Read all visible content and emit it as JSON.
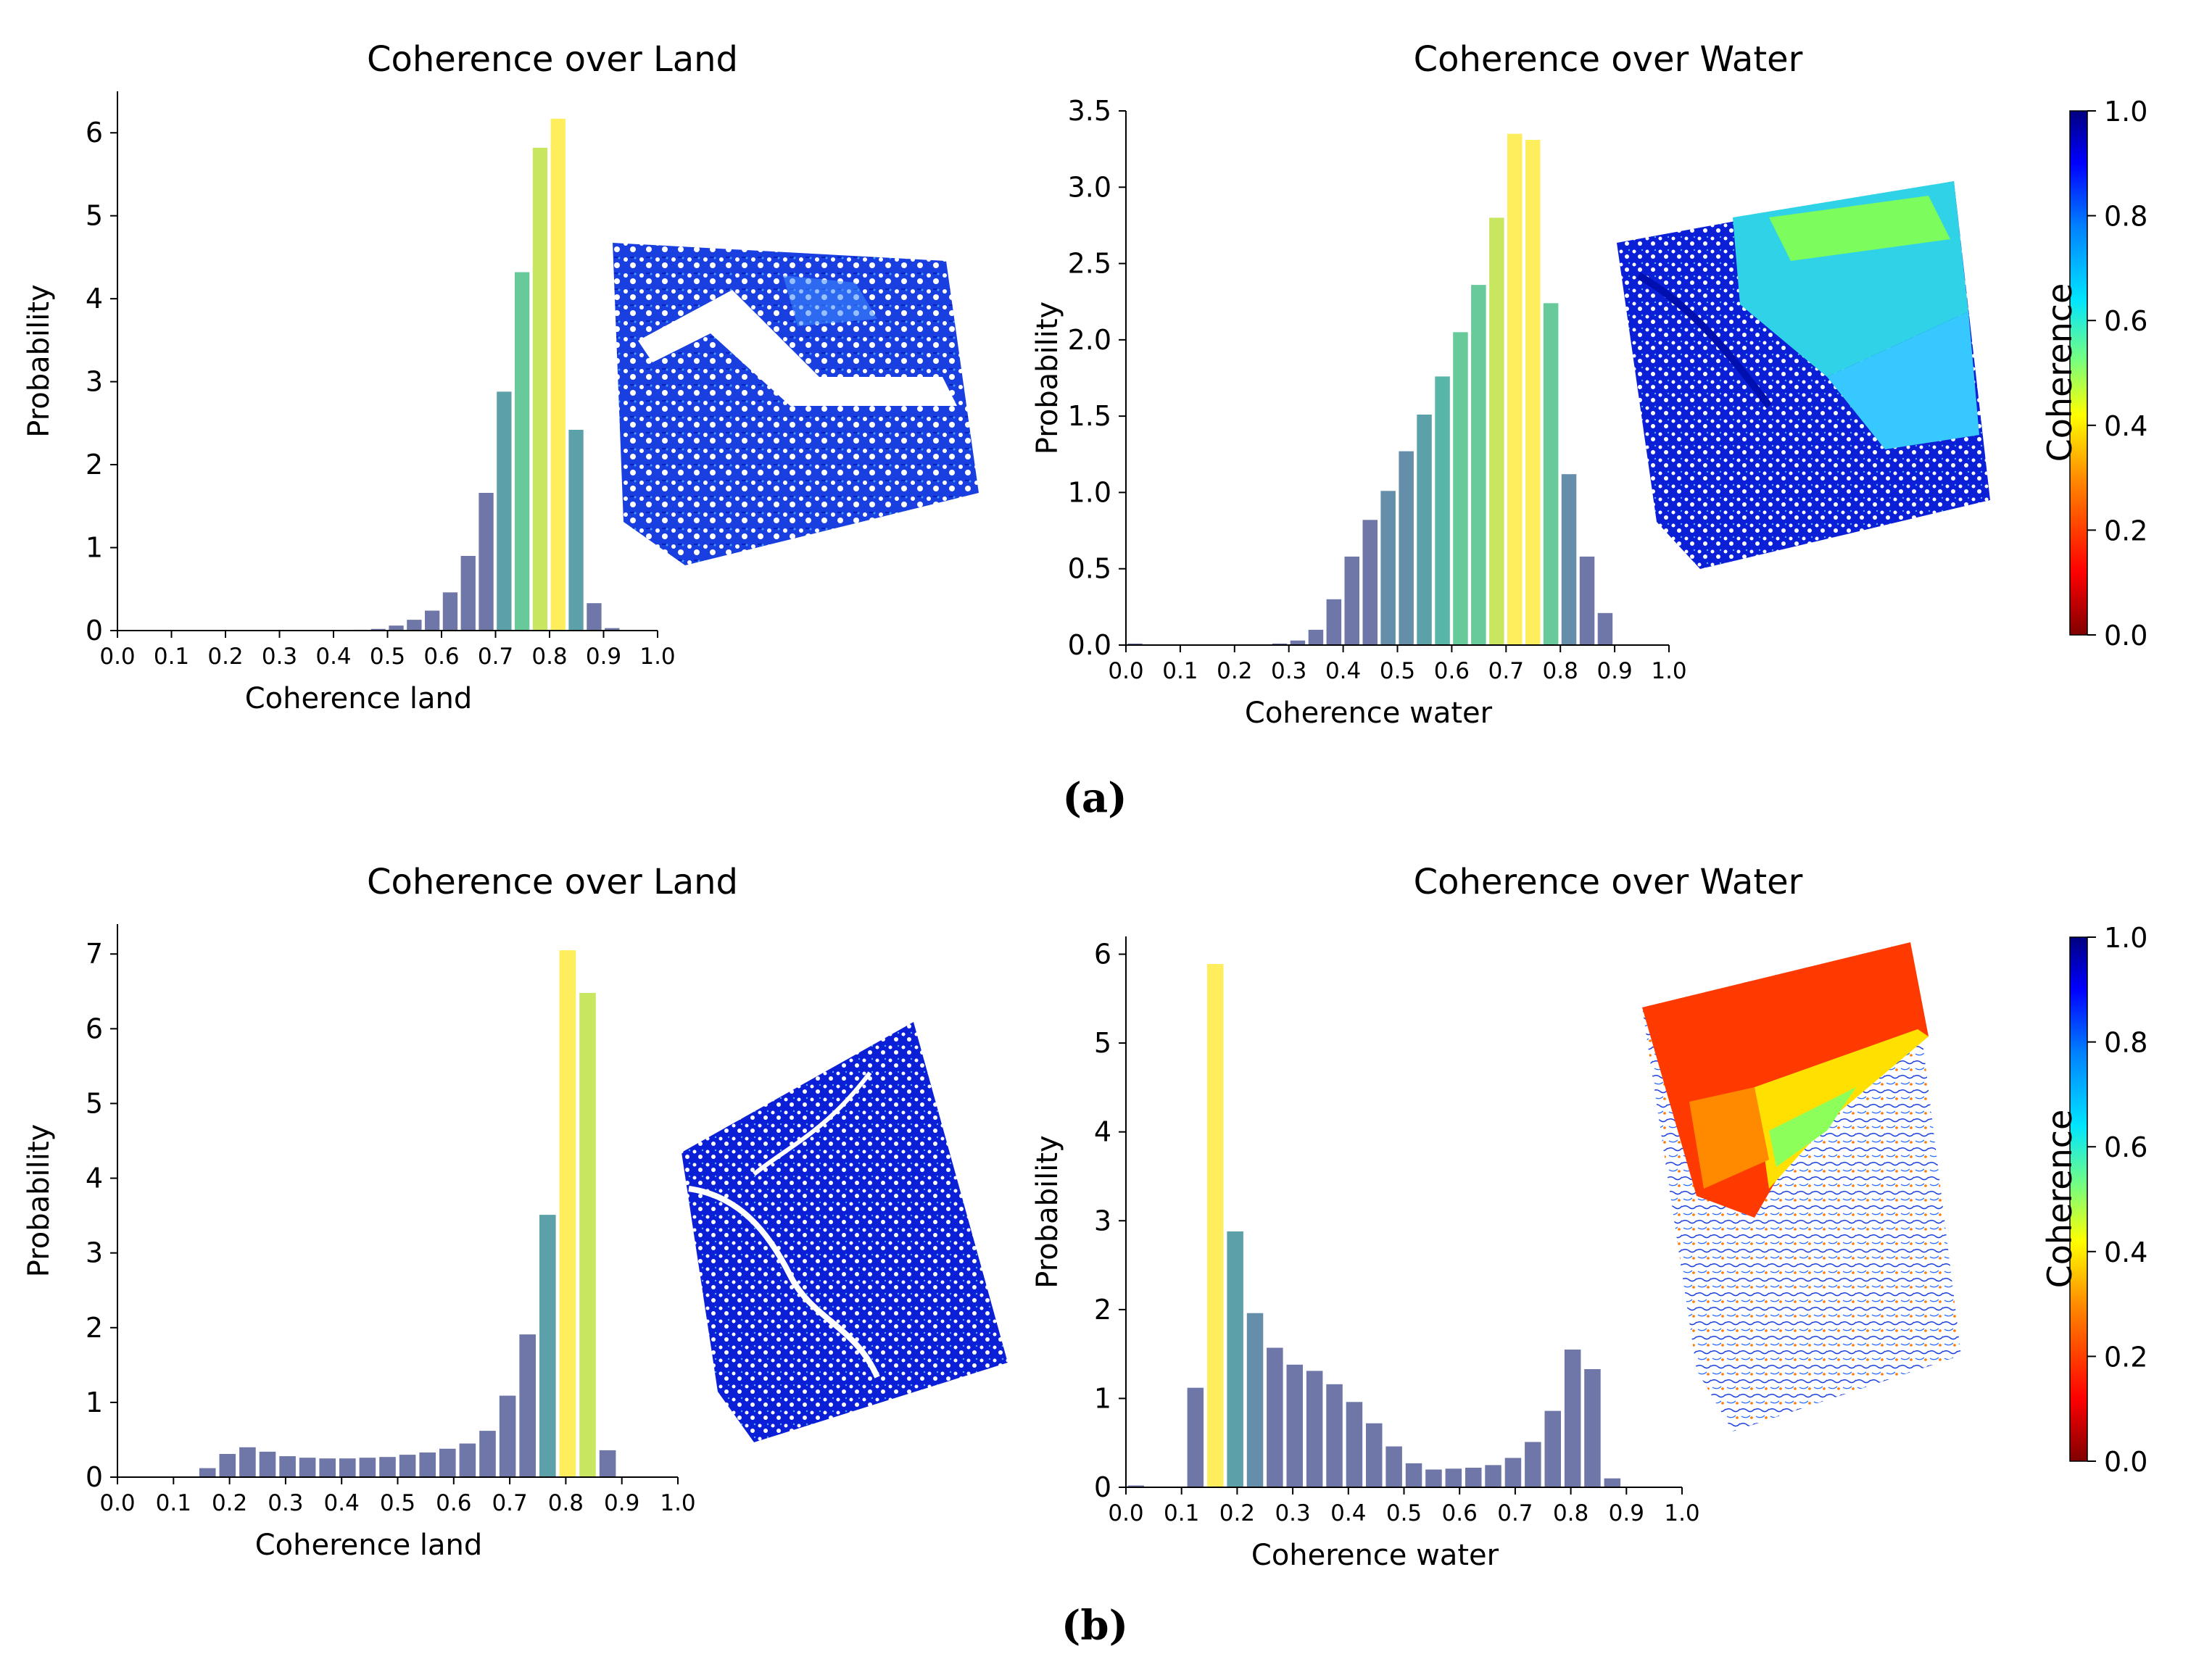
{
  "figure": {
    "panel_labels": [
      "(a)",
      "(b)"
    ],
    "colorbar": {
      "label": "Coherence",
      "ticks": [
        "0.0",
        "0.2",
        "0.4",
        "0.6",
        "0.8",
        "1.0"
      ],
      "colors": [
        "#800000",
        "#ff0000",
        "#ff8c00",
        "#ffff00",
        "#7dff7a",
        "#00e5ff",
        "#0080ff",
        "#0000ff",
        "#000080"
      ]
    },
    "viridis": [
      "#440154",
      "#482878",
      "#3e4989",
      "#31688e",
      "#26828e",
      "#1f9e89",
      "#35b779",
      "#6ece58",
      "#b5de2b",
      "#fde725"
    ]
  },
  "chart_data": [
    {
      "id": "a_land",
      "type": "bar",
      "title": "Coherence over Land",
      "xlabel": "Coherence land",
      "ylabel": "Probability",
      "xlim": [
        0,
        1
      ],
      "ylim": [
        0,
        6.5
      ],
      "xticks": [
        "0.0",
        "0.1",
        "0.2",
        "0.3",
        "0.4",
        "0.5",
        "0.6",
        "0.7",
        "0.8",
        "0.9",
        "1.0"
      ],
      "yticks": [
        0,
        1,
        2,
        3,
        4,
        5,
        6
      ],
      "bin_width": 0.0333,
      "values": [
        0,
        0,
        0,
        0,
        0,
        0,
        0,
        0,
        0,
        0,
        0,
        0,
        0,
        0.01,
        0.02,
        0.06,
        0.13,
        0.24,
        0.46,
        0.9,
        1.66,
        2.88,
        4.32,
        5.82,
        6.17,
        2.42,
        0.33,
        0.03,
        0,
        0
      ]
    },
    {
      "id": "a_water",
      "type": "bar",
      "title": "Coherence over Water",
      "xlabel": "Coherence water",
      "ylabel": "Probability",
      "xlim": [
        0,
        1
      ],
      "ylim": [
        0,
        3.5
      ],
      "xticks": [
        "0.0",
        "0.1",
        "0.2",
        "0.3",
        "0.4",
        "0.5",
        "0.6",
        "0.7",
        "0.8",
        "0.9",
        "1.0"
      ],
      "yticks": [
        "0.0",
        "0.5",
        "1.0",
        "1.5",
        "2.0",
        "2.5",
        "3.0",
        "3.5"
      ],
      "bin_width": 0.0333,
      "values": [
        0.01,
        0,
        0,
        0,
        0,
        0,
        0,
        0,
        0.01,
        0.03,
        0.1,
        0.3,
        0.58,
        0.82,
        1.01,
        1.27,
        1.51,
        1.76,
        2.05,
        2.36,
        2.8,
        3.35,
        3.31,
        2.24,
        1.12,
        0.58,
        0.21,
        0,
        0,
        0
      ]
    },
    {
      "id": "b_land",
      "type": "bar",
      "title": "Coherence over Land",
      "xlabel": "Coherence land",
      "ylabel": "Probability",
      "xlim": [
        0,
        1
      ],
      "ylim": [
        0,
        7.4
      ],
      "xticks": [
        "0.0",
        "0.1",
        "0.2",
        "0.3",
        "0.4",
        "0.5",
        "0.6",
        "0.7",
        "0.8",
        "0.9",
        "1.0"
      ],
      "yticks": [
        0,
        1,
        2,
        3,
        4,
        5,
        6,
        7
      ],
      "bin_width": 0.0357,
      "values": [
        0,
        0,
        0,
        0,
        0.12,
        0.31,
        0.4,
        0.34,
        0.28,
        0.26,
        0.25,
        0.25,
        0.26,
        0.27,
        0.3,
        0.33,
        0.38,
        0.45,
        0.62,
        1.09,
        1.91,
        3.51,
        7.05,
        6.48,
        0.36,
        0,
        0,
        0
      ]
    },
    {
      "id": "b_water",
      "type": "bar",
      "title": "Coherence over Water",
      "xlabel": "Coherence water",
      "ylabel": "Probability",
      "xlim": [
        0,
        1
      ],
      "ylim": [
        0,
        6.2
      ],
      "xticks": [
        "0.0",
        "0.1",
        "0.2",
        "0.3",
        "0.4",
        "0.5",
        "0.6",
        "0.7",
        "0.8",
        "0.9",
        "1.0"
      ],
      "yticks": [
        0,
        1,
        2,
        3,
        4,
        5,
        6
      ],
      "bin_width": 0.0357,
      "values": [
        0.02,
        0,
        0,
        1.12,
        5.89,
        2.88,
        1.96,
        1.57,
        1.38,
        1.31,
        1.16,
        0.96,
        0.72,
        0.46,
        0.27,
        0.2,
        0.21,
        0.22,
        0.25,
        0.33,
        0.51,
        0.86,
        1.55,
        1.33,
        0.1,
        0,
        0,
        0
      ]
    }
  ]
}
